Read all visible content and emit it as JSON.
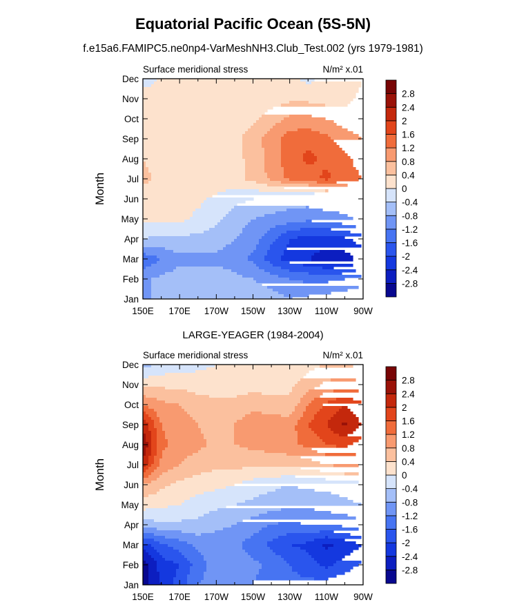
{
  "figure": {
    "title": "Equatorial Pacific Ocean (5S-5N)",
    "subtitle": "f.e15a6.FAMIPC5.ne0np4-VarMeshNH3.Club_Test.002 (yrs 1979-1981)"
  },
  "chart_data": [
    {
      "type": "heatmap",
      "title": "",
      "left_label": "Surface meridional stress",
      "units": "N/m² x.01",
      "ylabel": "Month",
      "xlabel": "",
      "x_ticks": [
        "150E",
        "170E",
        "170W",
        "150W",
        "130W",
        "110W",
        "90W"
      ],
      "y_ticks": [
        "Jan",
        "Feb",
        "Mar",
        "Apr",
        "May",
        "Jun",
        "Jul",
        "Aug",
        "Sep",
        "Oct",
        "Nov",
        "Dec"
      ],
      "lon": [
        150,
        160,
        170,
        180,
        190,
        200,
        210,
        220,
        230,
        240,
        250,
        260,
        270
      ],
      "levels": [
        -2.8,
        -2.4,
        -2,
        -1.6,
        -1.2,
        -0.8,
        -0.4,
        0,
        0.4,
        0.8,
        1.2,
        1.6,
        2,
        2.4,
        2.8
      ],
      "colorbar_labels": [
        "2.8",
        "2.4",
        "2",
        "1.6",
        "1.2",
        "0.8",
        "0.4",
        "0",
        "-0.4",
        "-0.8",
        "-1.2",
        "-1.6",
        "-2",
        "-2.4",
        "-2.8"
      ],
      "colors": [
        "#08088f",
        "#0c1ec0",
        "#1438df",
        "#2a55ed",
        "#4774f2",
        "#7095f5",
        "#a4bff8",
        "#d6e4fb",
        "#fde2cd",
        "#fbc09e",
        "#f89a70",
        "#f06c3b",
        "#e2451b",
        "#c4280c",
        "#9a1208",
        "#780505"
      ],
      "values": [
        [
          -0.9,
          -0.7,
          -0.6,
          -0.6,
          -0.7,
          -0.7,
          -0.5,
          -0.6,
          -0.8,
          -0.7,
          -0.6,
          -0.5,
          -0.4
        ],
        [
          -0.9,
          -0.7,
          -0.6,
          -0.6,
          -0.6,
          -0.7,
          -0.8,
          -1.0,
          -1.2,
          -1.3,
          -1.3,
          -1.2,
          -1.0
        ],
        [
          -1.5,
          -1.2,
          -0.9,
          -0.9,
          -0.9,
          -1.0,
          -1.3,
          -1.8,
          -2.2,
          -2.4,
          -2.6,
          -2.6,
          -2.2
        ],
        [
          -0.4,
          -0.5,
          -0.5,
          -0.5,
          -0.6,
          -0.8,
          -1.0,
          -1.5,
          -2.0,
          -2.2,
          -2.2,
          -2.1,
          -1.8
        ],
        [
          0.1,
          0.1,
          0.1,
          -0.1,
          -0.3,
          -0.6,
          -0.8,
          -0.9,
          -1.0,
          -1.1,
          -1.0,
          -0.9,
          -0.7
        ],
        [
          0.2,
          0.2,
          0.2,
          0.1,
          -0.1,
          -0.3,
          -0.4,
          -0.5,
          -0.6,
          -0.6,
          -0.5,
          -0.5,
          -0.4
        ],
        [
          0.5,
          0.3,
          0.3,
          0.4,
          0.3,
          0.3,
          0.5,
          0.9,
          1.3,
          1.4,
          1.7,
          1.4,
          1.2
        ],
        [
          0.4,
          0.2,
          0.2,
          0.3,
          0.3,
          0.3,
          0.5,
          1.0,
          1.4,
          1.7,
          1.5,
          1.3,
          1.0
        ],
        [
          0.4,
          0.2,
          0.2,
          0.2,
          0.2,
          0.3,
          0.6,
          1.0,
          1.4,
          1.5,
          1.3,
          1.0,
          0.8
        ],
        [
          0.4,
          0.2,
          0.2,
          0.2,
          0.2,
          0.2,
          0.3,
          0.6,
          0.9,
          0.9,
          0.8,
          0.6,
          0.5
        ],
        [
          0.3,
          0.2,
          0.2,
          0.2,
          0.2,
          0.2,
          0.2,
          0.2,
          0.3,
          0.3,
          0.2,
          0.3,
          0.5
        ],
        [
          -0.3,
          0.1,
          0.1,
          0.2,
          0.2,
          0.2,
          0.2,
          0.2,
          0.1,
          -0.1,
          0.1,
          0.2,
          0.4
        ]
      ]
    },
    {
      "type": "heatmap",
      "title": "LARGE-YEAGER (1984-2004)",
      "left_label": "Surface meridional stress",
      "units": "N/m² x.01",
      "ylabel": "Month",
      "xlabel": "",
      "x_ticks": [
        "150E",
        "170E",
        "170W",
        "150W",
        "130W",
        "110W",
        "90W"
      ],
      "y_ticks": [
        "Jan",
        "Feb",
        "Mar",
        "Apr",
        "May",
        "Jun",
        "Jul",
        "Aug",
        "Sep",
        "Oct",
        "Nov",
        "Dec"
      ],
      "lon": [
        150,
        160,
        170,
        180,
        190,
        200,
        210,
        220,
        230,
        240,
        250,
        260,
        270
      ],
      "levels": [
        -2.8,
        -2.4,
        -2,
        -1.6,
        -1.2,
        -0.8,
        -0.4,
        0,
        0.4,
        0.8,
        1.2,
        1.6,
        2,
        2.4,
        2.8
      ],
      "colorbar_labels": [
        "2.8",
        "2.4",
        "2",
        "1.6",
        "1.2",
        "0.8",
        "0.4",
        "0",
        "-0.4",
        "-0.8",
        "-1.2",
        "-1.6",
        "-2",
        "-2.4",
        "-2.8"
      ],
      "colors": [
        "#08088f",
        "#0c1ec0",
        "#1438df",
        "#2a55ed",
        "#4774f2",
        "#7095f5",
        "#a4bff8",
        "#d6e4fb",
        "#fde2cd",
        "#fbc09e",
        "#f89a70",
        "#f06c3b",
        "#e2451b",
        "#c4280c",
        "#9a1208",
        "#780505"
      ],
      "values": [
        [
          -3.0,
          -2.4,
          -1.8,
          -1.2,
          -1.0,
          -1.0,
          -1.2,
          -1.4,
          -1.5,
          -1.5,
          -1.4,
          -1.3,
          -1.2
        ],
        [
          -3.1,
          -2.2,
          -2.0,
          -1.4,
          -1.0,
          -0.9,
          -1.1,
          -1.3,
          -1.6,
          -1.8,
          -2.1,
          -1.8,
          -1.5
        ],
        [
          -2.2,
          -1.7,
          -1.4,
          -1.1,
          -1.0,
          -1.1,
          -1.4,
          -1.7,
          -2.0,
          -2.1,
          -2.5,
          -2.3,
          -2.0
        ],
        [
          -0.6,
          -0.5,
          -0.5,
          -0.5,
          -0.7,
          -0.8,
          -1.0,
          -1.2,
          -1.3,
          -1.2,
          -1.2,
          -1.1,
          -0.9
        ],
        [
          0.2,
          0.1,
          0.0,
          -0.2,
          -0.3,
          -0.4,
          -0.5,
          -0.6,
          -0.7,
          -0.7,
          -0.6,
          -0.5,
          -0.4
        ],
        [
          0.8,
          0.5,
          0.3,
          0.2,
          0.1,
          0.0,
          -0.2,
          -0.3,
          -0.4,
          -0.3,
          -0.3,
          -0.2,
          -0.1
        ],
        [
          2.2,
          1.1,
          0.8,
          0.6,
          0.5,
          0.5,
          0.5,
          0.5,
          0.5,
          0.6,
          0.8,
          0.9,
          0.8
        ],
        [
          2.8,
          1.3,
          1.0,
          0.9,
          0.7,
          0.8,
          0.9,
          1.0,
          1.1,
          1.3,
          1.6,
          1.7,
          1.4
        ],
        [
          2.3,
          1.2,
          1.0,
          0.8,
          0.6,
          0.8,
          1.0,
          1.0,
          1.0,
          1.6,
          2.0,
          2.5,
          1.9
        ],
        [
          1.2,
          0.9,
          0.8,
          0.6,
          0.5,
          0.6,
          0.7,
          0.6,
          0.5,
          1.2,
          1.7,
          2.0,
          1.7
        ],
        [
          0.3,
          0.3,
          0.3,
          0.2,
          0.2,
          0.1,
          0.2,
          0.2,
          0.3,
          0.6,
          0.9,
          1.0,
          0.9
        ],
        [
          -0.6,
          -0.3,
          -0.2,
          -0.1,
          0.0,
          0.1,
          0.1,
          0.1,
          0.1,
          0.3,
          0.4,
          0.4,
          0.3
        ]
      ]
    }
  ]
}
